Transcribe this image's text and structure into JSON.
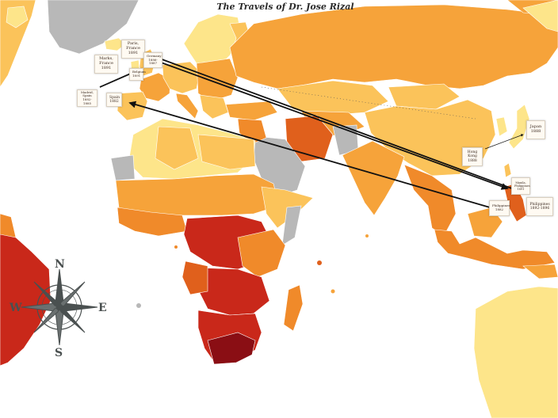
{
  "title": "The Travels of Dr. Jose Rizal",
  "colors": {
    "ocean": "#ffffff",
    "no_data": "#b8b8b8",
    "light": "#fde58a",
    "mid_light": "#fbc35a",
    "mid": "#f6a33a",
    "orange": "#f08a2a",
    "dark_orange": "#e0601c",
    "red": "#c9281a",
    "dark_red": "#8a0e14",
    "route_line": "#111111"
  },
  "places": {
    "paris": {
      "name": "Paris,",
      "detail": "France 1891"
    },
    "marks": {
      "name": "Marks,",
      "detail": "France 1891"
    },
    "germany": {
      "name": "Germany",
      "detail": "1886-1887"
    },
    "belgium": {
      "name": "Belgium",
      "detail": "1891"
    },
    "madrid": {
      "name": "Madrid,",
      "detail": "Spain 1882-1885"
    },
    "spain": {
      "name": "Spain",
      "detail": "1882"
    },
    "hongkong": {
      "name": "Hong",
      "detail": "Kong 1888"
    },
    "japan": {
      "name": "Japan",
      "detail": "1888"
    },
    "manila": {
      "name": "Manila,",
      "detail": "Philippines 1891"
    },
    "philippines_left": {
      "name": "Philippines",
      "detail": "1882"
    },
    "philippines_right": {
      "name": "Philippines",
      "detail": "1892-1896"
    }
  },
  "compass": {
    "north": "N",
    "south": "S",
    "east": "E",
    "west": "W"
  }
}
